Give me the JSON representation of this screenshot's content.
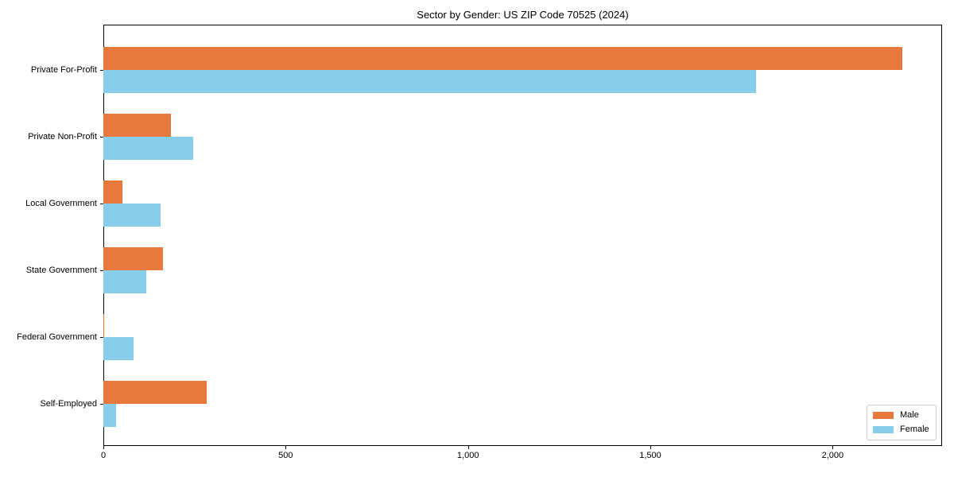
{
  "chart_data": {
    "type": "bar",
    "orientation": "horizontal",
    "title": "Sector by Gender: US ZIP Code 70525 (2024)",
    "categories": [
      "Private For-Profit",
      "Private Non-Profit",
      "Local Government",
      "State Government",
      "Federal Government",
      "Self-Employed"
    ],
    "series": [
      {
        "name": "Male",
        "color": "#e8793c",
        "values": [
          2190,
          185,
          52,
          163,
          3,
          283
        ]
      },
      {
        "name": "Female",
        "color": "#87ceeb",
        "values": [
          1790,
          246,
          157,
          118,
          82,
          35
        ]
      }
    ],
    "xlabel": "",
    "ylabel": "",
    "xlim": [
      0,
      2300
    ],
    "x_ticks": [
      0,
      500,
      1000,
      1500,
      2000
    ],
    "x_tick_labels": [
      "0",
      "500",
      "1,000",
      "1,500",
      "2,000"
    ],
    "grid": false,
    "legend_position": "lower right"
  }
}
